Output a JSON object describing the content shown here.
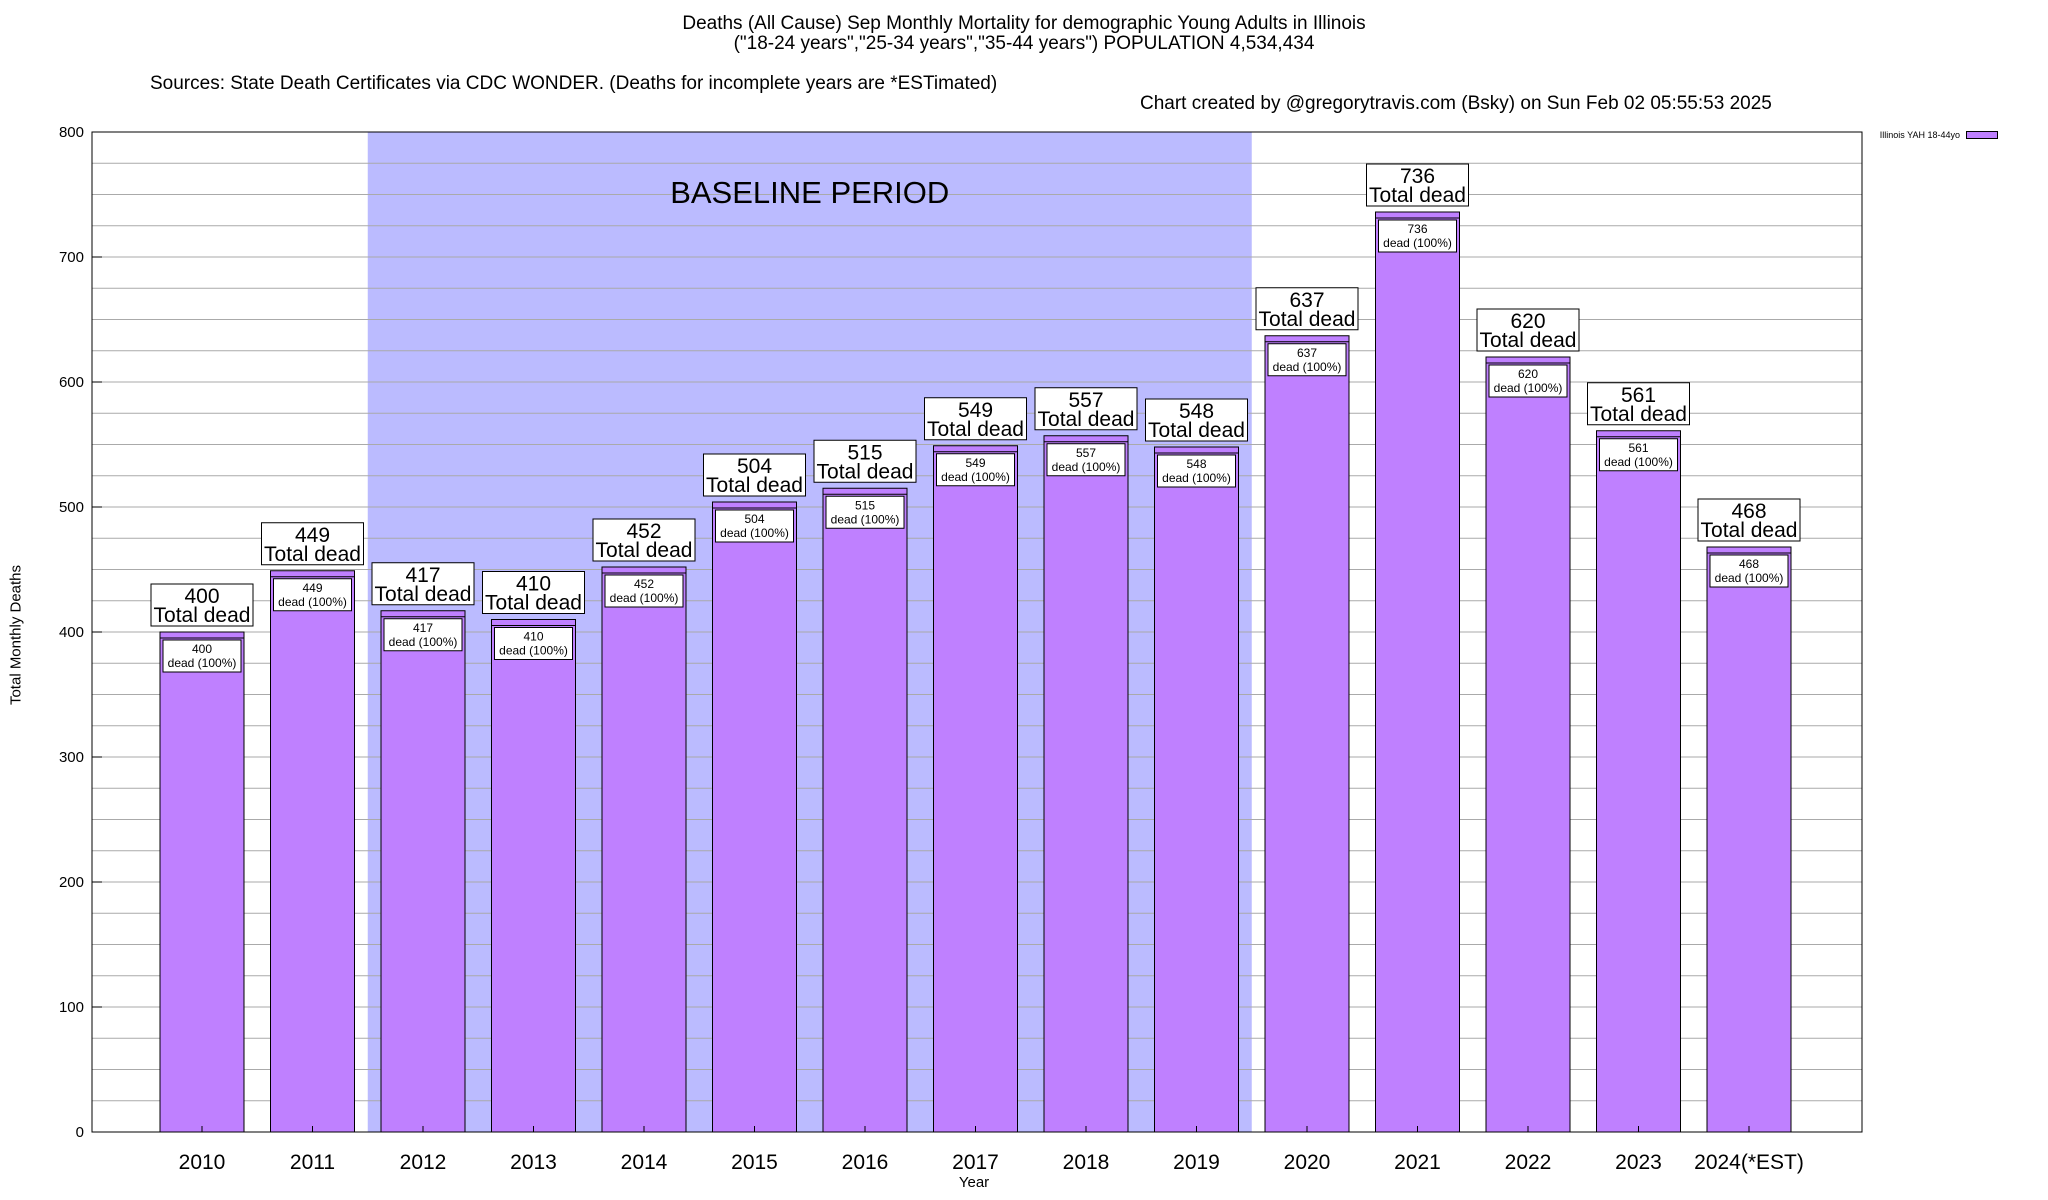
{
  "title_lines": [
    "Deaths (All Cause) Sep Monthly Mortality for demographic Young Adults in Illinois",
    "(\"18-24 years\",\"25-34 years\",\"35-44 years\") POPULATION 4,534,434"
  ],
  "sources": "Sources: State Death Certificates via CDC WONDER. (Deaths for incomplete years are *ESTimated)",
  "credit": "Chart created by @gregorytravis.com (Bsky) on Sun Feb 02 05:55:53 2025",
  "colors": {
    "bar": "#bf80ff",
    "baseline_band": "#bbbbff",
    "grid": "#aaaaaa"
  },
  "chart_data": {
    "type": "bar",
    "title": "Deaths (All Cause) Sep Monthly Mortality for demographic Young Adults in Illinois",
    "xlabel": "Year",
    "ylabel": "Total Monthly Deaths",
    "ylim": [
      0,
      800
    ],
    "yticks": [
      0,
      100,
      200,
      300,
      400,
      500,
      600,
      700,
      800
    ],
    "categories": [
      "2010",
      "2011",
      "2012",
      "2013",
      "2014",
      "2015",
      "2016",
      "2017",
      "2018",
      "2019",
      "2020",
      "2021",
      "2022",
      "2023",
      "2024(*EST)"
    ],
    "series": [
      {
        "name": "Illinois YAH 18-44yo",
        "values": [
          400,
          449,
          417,
          410,
          452,
          504,
          515,
          549,
          557,
          548,
          637,
          736,
          620,
          561,
          468
        ]
      }
    ],
    "bar_label_suffix": "Total dead",
    "inner_label_suffix": "dead (100%)",
    "baseline_band": {
      "label": "BASELINE PERIOD",
      "from": "2012",
      "to": "2019"
    },
    "legend_position": "top-right",
    "grid": true
  }
}
